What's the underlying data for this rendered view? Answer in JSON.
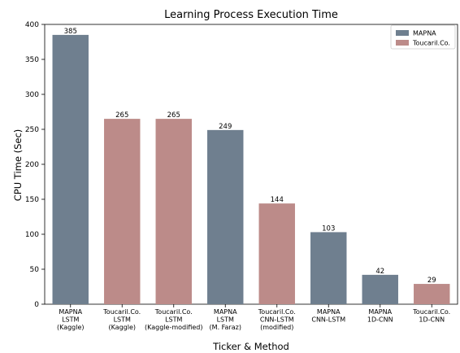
{
  "chart_data": {
    "type": "bar",
    "title": "Learning Process Execution Time",
    "xlabel": "Ticker & Method",
    "ylabel": "CPU Time (Sec)",
    "ylim": [
      0,
      400
    ],
    "yticks": [
      0,
      50,
      100,
      150,
      200,
      250,
      300,
      350,
      400
    ],
    "grid": false,
    "legend_position": "top-right",
    "legend": [
      {
        "name": "MAPNA",
        "color": "#6f7f8f"
      },
      {
        "name": "Toucaril.Co.",
        "color": "#bc8b89"
      }
    ],
    "categories": [
      [
        "MAPNA",
        "LSTM",
        "(Kaggle)"
      ],
      [
        "Toucaril.Co.",
        "LSTM",
        "(Kaggle)"
      ],
      [
        "Toucaril.Co.",
        "LSTM",
        "(Kaggle-modified)"
      ],
      [
        "MAPNA",
        "LSTM",
        "(M. Faraz)"
      ],
      [
        "Toucaril.Co.",
        "CNN-LSTM",
        "(modified)"
      ],
      [
        "MAPNA",
        "CNN-LSTM"
      ],
      [
        "MAPNA",
        "1D-CNN"
      ],
      [
        "Toucaril.Co.",
        "1D-CNN"
      ]
    ],
    "values": [
      385,
      265,
      265,
      249,
      144,
      103,
      42,
      29
    ],
    "series_index": [
      0,
      1,
      1,
      0,
      1,
      0,
      0,
      1
    ]
  }
}
